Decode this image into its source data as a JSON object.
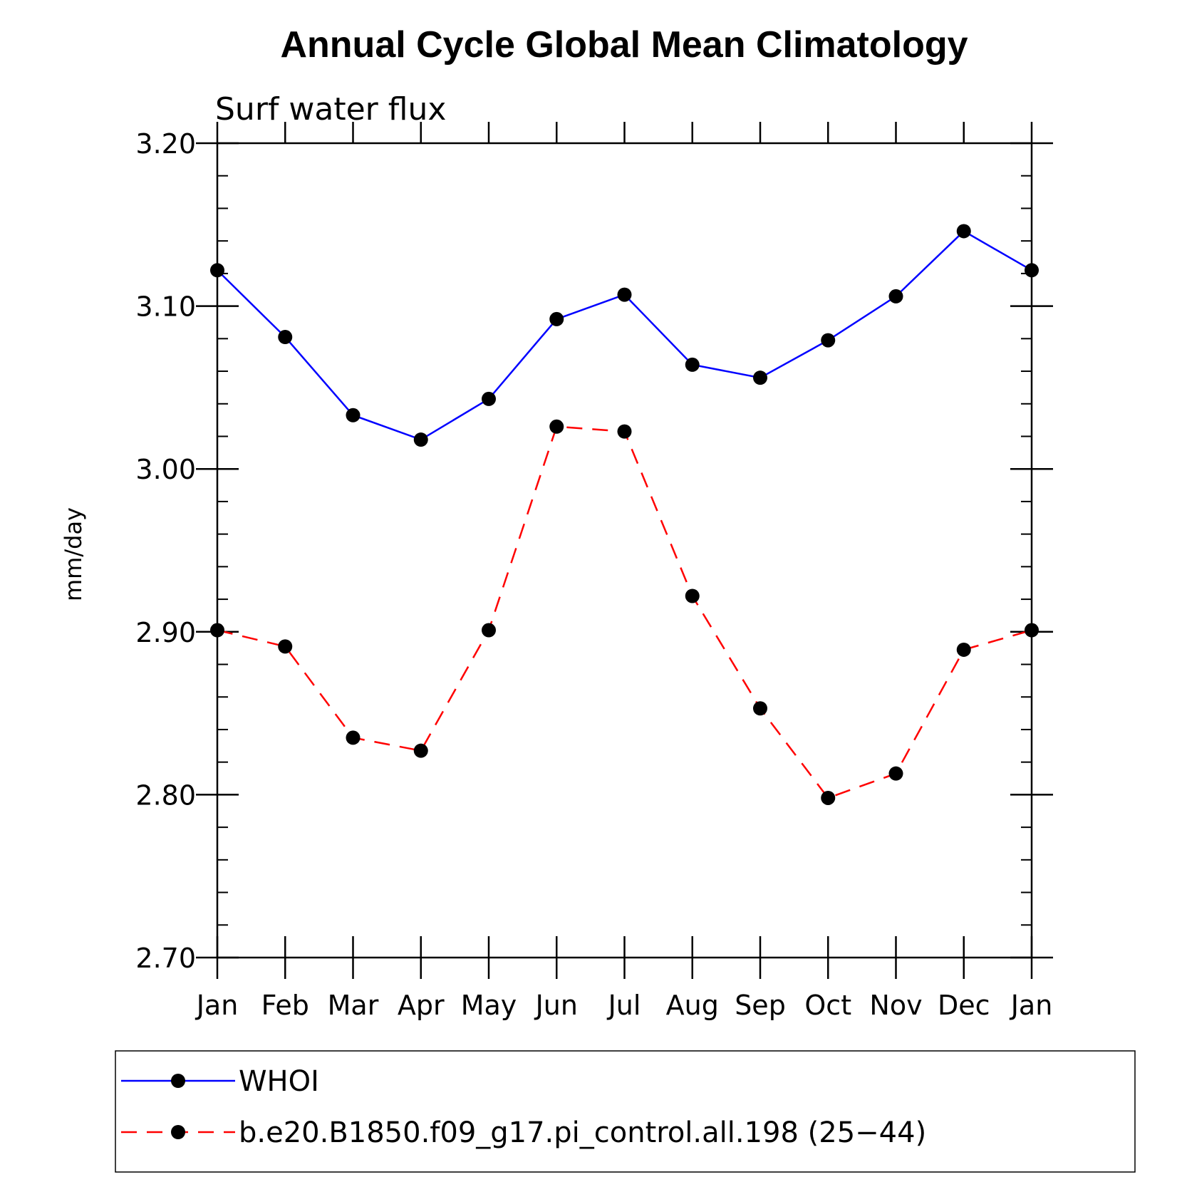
{
  "chart_data": {
    "type": "line",
    "title": "Annual Cycle Global Mean Climatology",
    "subtitle": "Surf water flux",
    "xlabel": "",
    "ylabel": "mm/day",
    "categories": [
      "Jan",
      "Feb",
      "Mar",
      "Apr",
      "May",
      "Jun",
      "Jul",
      "Aug",
      "Sep",
      "Oct",
      "Nov",
      "Dec",
      "Jan"
    ],
    "ylim": [
      2.7,
      3.2
    ],
    "yticks": [
      "2.70",
      "2.80",
      "2.90",
      "3.00",
      "3.10",
      "3.20"
    ],
    "grid": false,
    "legend_position": "bottom",
    "series": [
      {
        "name": "WHOI",
        "color": "#0000ff",
        "line_style": "solid",
        "marker": "filled-circle",
        "values": [
          3.122,
          3.081,
          3.033,
          3.018,
          3.043,
          3.092,
          3.107,
          3.064,
          3.056,
          3.079,
          3.106,
          3.146,
          3.122
        ]
      },
      {
        "name": "b.e20.B1850.f09_g17.pi_control.all.198 (25−44)",
        "color": "#ff0000",
        "line_style": "dashed",
        "marker": "filled-circle",
        "values": [
          2.901,
          2.891,
          2.835,
          2.827,
          2.901,
          3.026,
          3.023,
          2.922,
          2.853,
          2.798,
          2.813,
          2.889,
          2.901
        ]
      }
    ]
  }
}
